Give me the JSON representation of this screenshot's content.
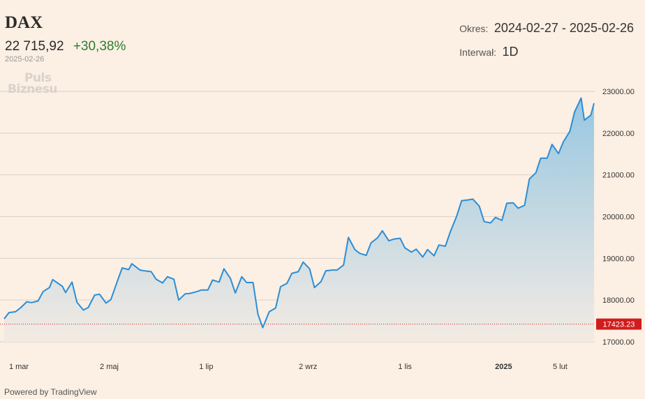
{
  "header": {
    "ticker": "DAX",
    "price": "22 715,92",
    "change": "+30,38%",
    "date": "2025-02-26",
    "period_label": "Okres:",
    "period_value": "2024-02-27 - 2025-02-26",
    "interval_label": "Interwał:",
    "interval_value": "1D"
  },
  "watermark": {
    "line1": "Puls",
    "line2": "Biznesu"
  },
  "footer": {
    "powered": "Powered by TradingView"
  },
  "colors": {
    "line": "#2b8ed6",
    "area_top": "#98c7e2",
    "area_bottom": "#f3ebe3",
    "grid": "#d9d2cc",
    "ref_line": "#d21c1c",
    "ref_label_bg": "#d21c1c",
    "change_positive": "#2e7d32"
  },
  "chart_data": {
    "type": "area",
    "title": "DAX",
    "xlabel": "",
    "ylabel": "",
    "ylim": [
      16700,
      23400
    ],
    "grid": true,
    "y_axis_position": "right",
    "y_ticks": [
      "23000.00",
      "22000.00",
      "21000.00",
      "20000.00",
      "19000.00",
      "18000.00",
      "17000.00"
    ],
    "x_ticks": [
      {
        "date": "2024-03-01",
        "label": "1 mar",
        "bold": false
      },
      {
        "date": "2024-05-02",
        "label": "2 maj",
        "bold": false
      },
      {
        "date": "2024-07-01",
        "label": "1 lip",
        "bold": false
      },
      {
        "date": "2024-09-02",
        "label": "2 wrz",
        "bold": false
      },
      {
        "date": "2024-11-01",
        "label": "1 lis",
        "bold": false
      },
      {
        "date": "2025-01-01",
        "label": "2025",
        "bold": true
      },
      {
        "date": "2025-02-05",
        "label": "5 lut",
        "bold": false
      }
    ],
    "reference_line": {
      "value": 17423.23,
      "label": "17423.23",
      "style": "dotted"
    },
    "series": [
      {
        "points": [
          [
            "2024-02-27",
            17550
          ],
          [
            "2024-03-01",
            17700
          ],
          [
            "2024-03-05",
            17720
          ],
          [
            "2024-03-08",
            17810
          ],
          [
            "2024-03-12",
            17960
          ],
          [
            "2024-03-15",
            17940
          ],
          [
            "2024-03-19",
            17980
          ],
          [
            "2024-03-22",
            18200
          ],
          [
            "2024-03-26",
            18300
          ],
          [
            "2024-03-28",
            18490
          ],
          [
            "2024-04-03",
            18330
          ],
          [
            "2024-04-05",
            18180
          ],
          [
            "2024-04-09",
            18430
          ],
          [
            "2024-04-12",
            17950
          ],
          [
            "2024-04-16",
            17760
          ],
          [
            "2024-04-19",
            17820
          ],
          [
            "2024-04-23",
            18120
          ],
          [
            "2024-04-26",
            18140
          ],
          [
            "2024-04-30",
            17930
          ],
          [
            "2024-05-03",
            18010
          ],
          [
            "2024-05-07",
            18450
          ],
          [
            "2024-05-10",
            18770
          ],
          [
            "2024-05-14",
            18730
          ],
          [
            "2024-05-16",
            18870
          ],
          [
            "2024-05-21",
            18720
          ],
          [
            "2024-05-24",
            18700
          ],
          [
            "2024-05-28",
            18680
          ],
          [
            "2024-05-31",
            18500
          ],
          [
            "2024-06-04",
            18410
          ],
          [
            "2024-06-07",
            18560
          ],
          [
            "2024-06-11",
            18500
          ],
          [
            "2024-06-14",
            18000
          ],
          [
            "2024-06-18",
            18150
          ],
          [
            "2024-06-21",
            18160
          ],
          [
            "2024-06-25",
            18200
          ],
          [
            "2024-06-28",
            18240
          ],
          [
            "2024-07-02",
            18240
          ],
          [
            "2024-07-05",
            18480
          ],
          [
            "2024-07-09",
            18430
          ],
          [
            "2024-07-12",
            18750
          ],
          [
            "2024-07-16",
            18520
          ],
          [
            "2024-07-19",
            18170
          ],
          [
            "2024-07-23",
            18560
          ],
          [
            "2024-07-26",
            18420
          ],
          [
            "2024-07-30",
            18420
          ],
          [
            "2024-08-02",
            17660
          ],
          [
            "2024-08-05",
            17340
          ],
          [
            "2024-08-09",
            17720
          ],
          [
            "2024-08-13",
            17810
          ],
          [
            "2024-08-16",
            18320
          ],
          [
            "2024-08-20",
            18400
          ],
          [
            "2024-08-23",
            18640
          ],
          [
            "2024-08-27",
            18680
          ],
          [
            "2024-08-30",
            18910
          ],
          [
            "2024-09-03",
            18750
          ],
          [
            "2024-09-06",
            18300
          ],
          [
            "2024-09-10",
            18440
          ],
          [
            "2024-09-13",
            18700
          ],
          [
            "2024-09-17",
            18720
          ],
          [
            "2024-09-20",
            18720
          ],
          [
            "2024-09-24",
            18840
          ],
          [
            "2024-09-27",
            19500
          ],
          [
            "2024-10-01",
            19210
          ],
          [
            "2024-10-04",
            19120
          ],
          [
            "2024-10-08",
            19070
          ],
          [
            "2024-10-11",
            19370
          ],
          [
            "2024-10-15",
            19490
          ],
          [
            "2024-10-18",
            19660
          ],
          [
            "2024-10-22",
            19420
          ],
          [
            "2024-10-25",
            19460
          ],
          [
            "2024-10-29",
            19480
          ],
          [
            "2024-11-01",
            19250
          ],
          [
            "2024-11-05",
            19150
          ],
          [
            "2024-11-08",
            19220
          ],
          [
            "2024-11-12",
            19030
          ],
          [
            "2024-11-15",
            19210
          ],
          [
            "2024-11-19",
            19060
          ],
          [
            "2024-11-22",
            19320
          ],
          [
            "2024-11-26",
            19290
          ],
          [
            "2024-11-29",
            19630
          ],
          [
            "2024-12-03",
            20010
          ],
          [
            "2024-12-06",
            20380
          ],
          [
            "2024-12-10",
            20400
          ],
          [
            "2024-12-13",
            20420
          ],
          [
            "2024-12-17",
            20250
          ],
          [
            "2024-12-20",
            19880
          ],
          [
            "2024-12-24",
            19850
          ],
          [
            "2024-12-27",
            19980
          ],
          [
            "2024-12-31",
            19910
          ],
          [
            "2025-01-03",
            20320
          ],
          [
            "2025-01-07",
            20330
          ],
          [
            "2025-01-10",
            20200
          ],
          [
            "2025-01-14",
            20270
          ],
          [
            "2025-01-17",
            20900
          ],
          [
            "2025-01-21",
            21050
          ],
          [
            "2025-01-24",
            21400
          ],
          [
            "2025-01-28",
            21400
          ],
          [
            "2025-01-31",
            21730
          ],
          [
            "2025-02-04",
            21510
          ],
          [
            "2025-02-07",
            21790
          ],
          [
            "2025-02-11",
            22040
          ],
          [
            "2025-02-14",
            22510
          ],
          [
            "2025-02-18",
            22840
          ],
          [
            "2025-02-20",
            22310
          ],
          [
            "2025-02-24",
            22430
          ],
          [
            "2025-02-26",
            22716
          ]
        ]
      }
    ]
  }
}
